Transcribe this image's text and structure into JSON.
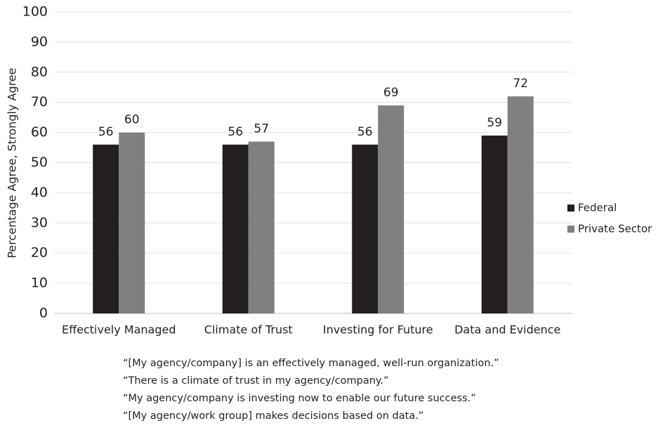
{
  "chart_data": {
    "type": "bar",
    "y_label": "Percentage Agree, Strongly Agree",
    "categories": [
      "Effectively Managed",
      "Climate of Trust",
      "Investing for Future",
      "Data and Evidence"
    ],
    "series": [
      {
        "name": "Federal",
        "color": "#231f20",
        "values": [
          56,
          56,
          56,
          59
        ]
      },
      {
        "name": "Private Sector",
        "color": "#808080",
        "values": [
          60,
          57,
          69,
          72
        ]
      }
    ],
    "ylim": [
      0,
      100
    ],
    "yticks": [
      0,
      10,
      20,
      30,
      40,
      50,
      60,
      70,
      80,
      90,
      100
    ],
    "grid": true,
    "legend": "right",
    "notes": [
      "“[My agency/company] is an effectively managed, well-run organization.”",
      "“There is a climate of trust in my agency/company.”",
      "“My agency/company is investing now to enable our future success.”",
      "“[My agency/work group] makes decisions based on data.”"
    ]
  }
}
